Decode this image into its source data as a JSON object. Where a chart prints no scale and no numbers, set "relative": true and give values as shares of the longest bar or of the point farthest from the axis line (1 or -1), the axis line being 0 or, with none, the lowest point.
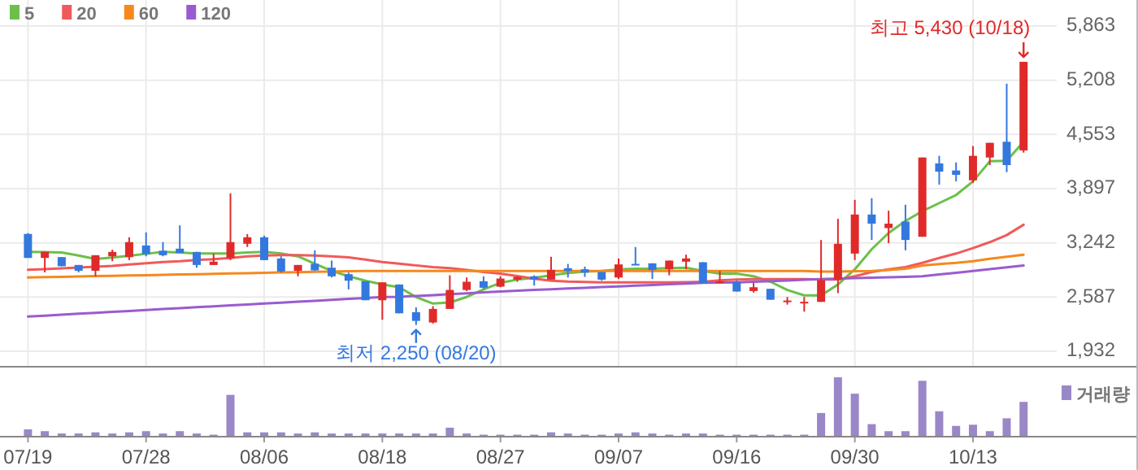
{
  "chart_data": [
    {
      "type": "candlestick",
      "categories": [
        "07/19",
        null,
        null,
        null,
        null,
        null,
        null,
        "07/28",
        null,
        null,
        null,
        null,
        null,
        null,
        "08/06",
        null,
        null,
        null,
        null,
        null,
        null,
        "08/18",
        null,
        null,
        null,
        null,
        null,
        null,
        "08/27",
        null,
        null,
        null,
        null,
        null,
        null,
        "09/07",
        null,
        null,
        null,
        null,
        null,
        null,
        "09/16",
        null,
        null,
        null,
        null,
        null,
        null,
        "09/30",
        null,
        null,
        null,
        null,
        null,
        null,
        "10/13",
        null,
        null,
        null
      ],
      "ohlc": [
        [
          3350,
          3360,
          3060,
          3060
        ],
        [
          3060,
          3135,
          2885,
          3135
        ],
        [
          3070,
          3070,
          2960,
          2960
        ],
        [
          2975,
          2975,
          2885,
          2905
        ],
        [
          2905,
          3093,
          2838,
          3093
        ],
        [
          3080,
          3159,
          3021,
          3133
        ],
        [
          3070,
          3310,
          3034,
          3251
        ],
        [
          3211,
          3369,
          3080,
          3106
        ],
        [
          3146,
          3251,
          3080,
          3093
        ],
        [
          3172,
          3454,
          3120,
          3120
        ],
        [
          3133,
          3133,
          2942,
          2975
        ],
        [
          2975,
          3113,
          2975,
          3015
        ],
        [
          3060,
          3841,
          3034,
          3251
        ],
        [
          3231,
          3349,
          3192,
          3310
        ],
        [
          3310,
          3329,
          3034,
          3034
        ],
        [
          3054,
          3080,
          2883,
          2896
        ],
        [
          2905,
          2975,
          2838,
          2975
        ],
        [
          2988,
          3152,
          2905,
          2910
        ],
        [
          2942,
          3028,
          2824,
          2838
        ],
        [
          2864,
          2883,
          2680,
          2785
        ],
        [
          2778,
          2778,
          2549,
          2549
        ],
        [
          2549,
          2765,
          2313,
          2765
        ],
        [
          2739,
          2739,
          2391,
          2391
        ],
        [
          2404,
          2463,
          2250,
          2299
        ],
        [
          2280,
          2477,
          2267,
          2444
        ],
        [
          2444,
          2850,
          2444,
          2673
        ],
        [
          2673,
          2824,
          2660,
          2772
        ],
        [
          2778,
          2838,
          2686,
          2700
        ],
        [
          2713,
          2838,
          2706,
          2811
        ],
        [
          2798,
          2838,
          2772,
          2831
        ],
        [
          2838,
          2850,
          2726,
          2798
        ],
        [
          2798,
          3074,
          2798,
          2916
        ],
        [
          2936,
          2988,
          2824,
          2903
        ],
        [
          2923,
          2955,
          2831,
          2883
        ],
        [
          2890,
          2890,
          2785,
          2798
        ],
        [
          2824,
          3054,
          2805,
          2982
        ],
        [
          2988,
          3192,
          2982,
          2982
        ],
        [
          2995,
          2995,
          2805,
          2916
        ],
        [
          2923,
          3028,
          2850,
          3028
        ],
        [
          3015,
          3100,
          2923,
          3054
        ],
        [
          3008,
          3008,
          2752,
          2752
        ],
        [
          2765,
          2903,
          2752,
          2778
        ],
        [
          2772,
          2785,
          2654,
          2654
        ],
        [
          2660,
          2759,
          2641,
          2706
        ],
        [
          2687,
          2687,
          2555,
          2555
        ],
        [
          2540,
          2588,
          2496,
          2545
        ],
        [
          2527,
          2588,
          2411,
          2530
        ],
        [
          2529,
          3277,
          2529,
          2791
        ],
        [
          2798,
          3533,
          2634,
          3231
        ],
        [
          3113,
          3762,
          3034,
          3585
        ],
        [
          3585,
          3782,
          3277,
          3474
        ],
        [
          3421,
          3631,
          3238,
          3474
        ],
        [
          3500,
          3703,
          3152,
          3277
        ],
        [
          3316,
          4274,
          3316,
          4274
        ],
        [
          4202,
          4294,
          3946,
          4103
        ],
        [
          4117,
          4215,
          3985,
          4064
        ],
        [
          3998,
          4412,
          3966,
          4294
        ],
        [
          4274,
          4451,
          4182,
          4451
        ],
        [
          4464,
          5166,
          4097,
          4182
        ],
        [
          4359,
          5430,
          4333,
          5430
        ]
      ],
      "series": [
        {
          "type": "line",
          "name": "5",
          "color": "#6cc04a",
          "values": [
            3133,
            3130,
            3126,
            3090,
            3047,
            3065,
            3087,
            3110,
            3133,
            3125,
            3113,
            3113,
            3113,
            3125,
            3133,
            3113,
            3080,
            2990,
            2903,
            2838,
            2785,
            2740,
            2706,
            2588,
            2509,
            2522,
            2588,
            2680,
            2759,
            2798,
            2818,
            2851,
            2877,
            2896,
            2903,
            2923,
            2929,
            2929,
            2936,
            2942,
            2903,
            2870,
            2870,
            2838,
            2772,
            2673,
            2608,
            2608,
            2739,
            2923,
            3165,
            3362,
            3507,
            3625,
            3723,
            3821,
            3985,
            4228,
            4235,
            4464
          ]
        },
        {
          "type": "line",
          "name": "20",
          "color": "#f05a5a",
          "values": [
            2916,
            2925,
            2935,
            2945,
            2955,
            2965,
            2980,
            2995,
            3010,
            3020,
            3035,
            3045,
            3060,
            3080,
            3090,
            3095,
            3095,
            3090,
            3080,
            3067,
            3040,
            3010,
            2990,
            2970,
            2950,
            2936,
            2915,
            2890,
            2870,
            2840,
            2810,
            2785,
            2775,
            2770,
            2765,
            2765,
            2765,
            2765,
            2765,
            2768,
            2772,
            2790,
            2800,
            2805,
            2805,
            2805,
            2805,
            2800,
            2800,
            2838,
            2890,
            2923,
            2949,
            3001,
            3060,
            3113,
            3179,
            3251,
            3336,
            3461
          ]
        },
        {
          "type": "line",
          "name": "60",
          "color": "#f5891f",
          "values": [
            2824,
            2828,
            2832,
            2836,
            2840,
            2844,
            2848,
            2852,
            2856,
            2860,
            2864,
            2868,
            2872,
            2876,
            2880,
            2884,
            2888,
            2892,
            2896,
            2900,
            2903,
            2903,
            2903,
            2903,
            2903,
            2903,
            2903,
            2903,
            2903,
            2903,
            2903,
            2903,
            2903,
            2903,
            2903,
            2903,
            2903,
            2903,
            2903,
            2903,
            2903,
            2903,
            2903,
            2903,
            2903,
            2903,
            2903,
            2895,
            2895,
            2900,
            2903,
            2915,
            2930,
            2968,
            2985,
            3000,
            3021,
            3050,
            3075,
            3100
          ]
        },
        {
          "type": "line",
          "name": "120",
          "color": "#9a5bd0",
          "values": [
            2352,
            2363,
            2374,
            2386,
            2397,
            2408,
            2419,
            2430,
            2442,
            2453,
            2464,
            2475,
            2486,
            2498,
            2509,
            2520,
            2531,
            2542,
            2554,
            2565,
            2576,
            2588,
            2590,
            2600,
            2611,
            2622,
            2633,
            2644,
            2655,
            2664,
            2673,
            2682,
            2690,
            2699,
            2708,
            2716,
            2725,
            2733,
            2742,
            2750,
            2759,
            2762,
            2765,
            2772,
            2780,
            2788,
            2796,
            2805,
            2810,
            2816,
            2822,
            2827,
            2832,
            2838,
            2860,
            2880,
            2903,
            2925,
            2947,
            2968
          ]
        }
      ],
      "ylim": [
        1755,
        5863
      ],
      "yticks": [
        {
          "value": 1932,
          "label": "1,932"
        },
        {
          "value": 2587,
          "label": "2,587"
        },
        {
          "value": 3242,
          "label": "3,242"
        },
        {
          "value": 3897,
          "label": "3,897"
        },
        {
          "value": 4553,
          "label": "4,553"
        },
        {
          "value": 5208,
          "label": "5,208"
        },
        {
          "value": 5863,
          "label": "5,863"
        }
      ],
      "grid": true,
      "legend": "top left",
      "annotations": [
        "최고 5,430 (10/18)",
        "최저 2,250 (08/20)"
      ]
    },
    {
      "type": "bar",
      "categories": [
        null,
        null,
        null,
        null,
        null,
        null,
        null,
        null,
        null,
        null,
        null,
        null,
        null,
        null,
        null,
        null,
        null,
        null,
        null,
        null,
        null,
        null,
        null,
        null,
        null,
        null,
        null,
        null,
        null,
        null,
        null,
        null,
        null,
        null,
        null,
        null,
        null,
        null,
        null,
        null,
        null,
        null,
        null,
        null,
        null,
        null,
        null,
        null,
        null,
        null,
        null,
        null,
        null,
        null,
        null,
        null,
        null,
        null,
        null,
        null
      ],
      "relative": true,
      "series": [
        {
          "name": "거래량",
          "color": "#9a87c8",
          "values": [
            0.11,
            0.08,
            0.04,
            0.04,
            0.06,
            0.04,
            0.06,
            0.08,
            0.04,
            0.08,
            0.04,
            0.02,
            0.7,
            0.06,
            0.06,
            0.06,
            0.04,
            0.06,
            0.04,
            0.04,
            0.04,
            0.04,
            0.04,
            0.04,
            0.04,
            0.14,
            0.04,
            0.02,
            0.02,
            0.02,
            0.02,
            0.06,
            0.04,
            0.02,
            0.02,
            0.04,
            0.06,
            0.04,
            0.02,
            0.04,
            0.04,
            0.02,
            0.02,
            0.02,
            0.02,
            0.02,
            0.02,
            0.39,
            1,
            0.72,
            0.2,
            0.08,
            0.08,
            0.94,
            0.42,
            0.17,
            0.19,
            0.08,
            0.3,
            0.58
          ]
        }
      ],
      "legend": "right"
    }
  ]
}
